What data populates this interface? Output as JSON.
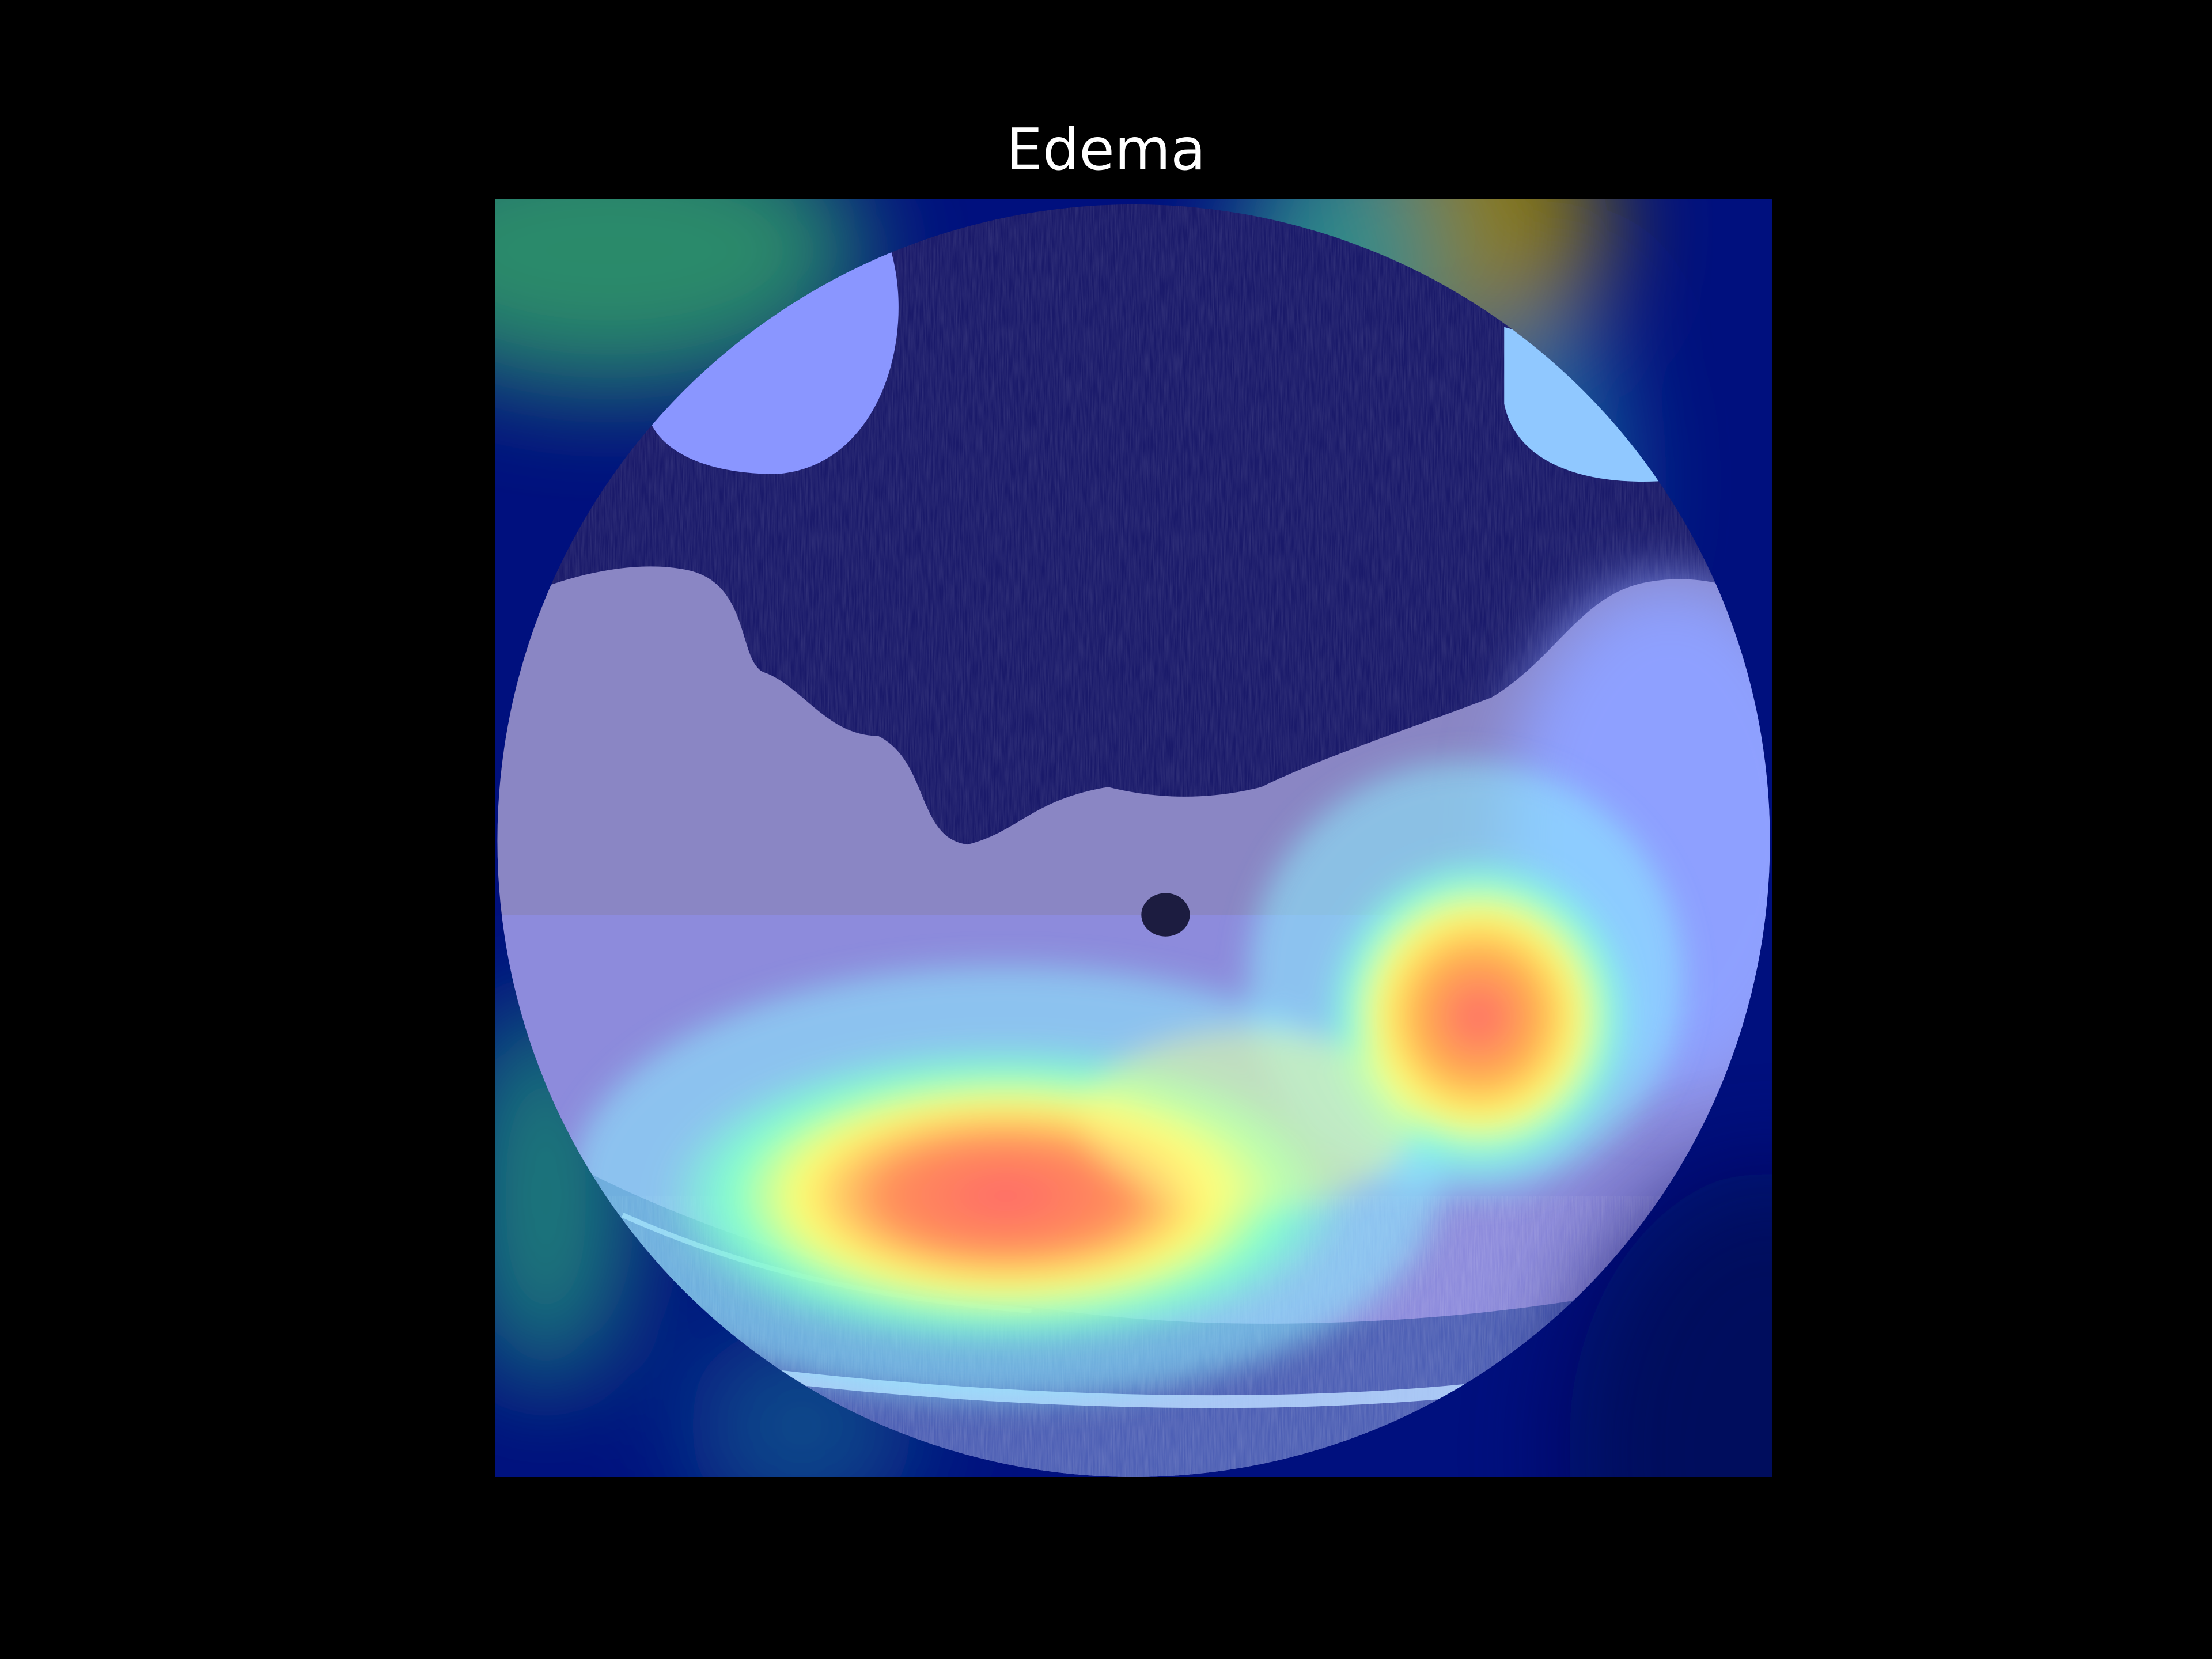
{
  "figure": {
    "title": "Edema",
    "background_color": "#000000",
    "image": {
      "kind": "chest CT axial slice with saliency heatmap overlay",
      "colormap": "jet"
    }
  }
}
